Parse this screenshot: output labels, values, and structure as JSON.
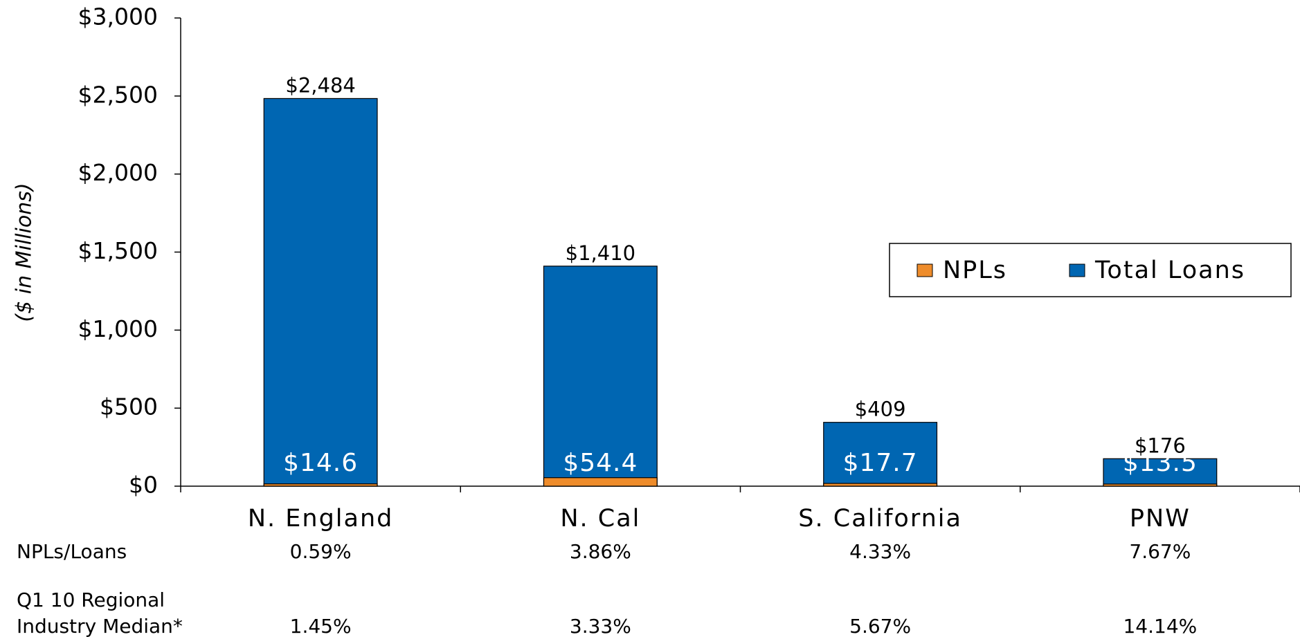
{
  "chart_data": {
    "type": "bar",
    "y_axis_label": "($ in Millions)",
    "categories": [
      "N. England",
      "N. Cal",
      "S. California",
      "PNW"
    ],
    "series": [
      {
        "name": "NPLs",
        "color": "#ee8c2b",
        "values": [
          14.6,
          54.4,
          17.7,
          13.5
        ],
        "value_labels": [
          "$14.6",
          "$54.4",
          "$17.7",
          "$13.5"
        ]
      },
      {
        "name": "Total Loans",
        "color": "#0066b2",
        "values": [
          2484,
          1410,
          409,
          176
        ],
        "value_labels": [
          "$2,484",
          "$1,410",
          "$409",
          "$176"
        ]
      }
    ],
    "ylim": [
      0,
      3000
    ],
    "yticks": [
      {
        "value": 0,
        "label": "$0"
      },
      {
        "value": 500,
        "label": "$500"
      },
      {
        "value": 1000,
        "label": "$1,000"
      },
      {
        "value": 1500,
        "label": "$1,500"
      },
      {
        "value": 2000,
        "label": "$2,000"
      },
      {
        "value": 2500,
        "label": "$2,500"
      },
      {
        "value": 3000,
        "label": "$3,000"
      }
    ],
    "legend": "right",
    "rows": [
      {
        "label": [
          "NPLs/Loans"
        ],
        "values": [
          "0.59%",
          "3.86%",
          "4.33%",
          "7.67%"
        ]
      },
      {
        "label": [
          "Q1 10 Regional",
          "Industry Median*"
        ],
        "values": [
          "1.45%",
          "3.33%",
          "5.67%",
          "14.14%"
        ]
      }
    ]
  }
}
